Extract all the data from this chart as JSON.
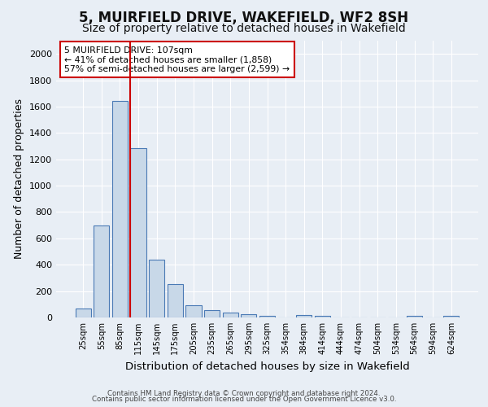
{
  "title": "5, MUIRFIELD DRIVE, WAKEFIELD, WF2 8SH",
  "subtitle": "Size of property relative to detached houses in Wakefield",
  "xlabel": "Distribution of detached houses by size in Wakefield",
  "ylabel": "Number of detached properties",
  "categories": [
    "25sqm",
    "55sqm",
    "85sqm",
    "115sqm",
    "145sqm",
    "175sqm",
    "205sqm",
    "235sqm",
    "265sqm",
    "295sqm",
    "325sqm",
    "354sqm",
    "384sqm",
    "414sqm",
    "444sqm",
    "474sqm",
    "504sqm",
    "534sqm",
    "564sqm",
    "594sqm",
    "624sqm"
  ],
  "values": [
    70,
    695,
    1640,
    1285,
    440,
    255,
    90,
    55,
    35,
    22,
    15,
    0,
    18,
    15,
    0,
    0,
    0,
    0,
    15,
    0,
    15
  ],
  "bar_color": "#c8d8e8",
  "bar_edge_color": "#4a7ab5",
  "vline_color": "#cc0000",
  "vline_x_index": 2.57,
  "annotation_text": "5 MUIRFIELD DRIVE: 107sqm\n← 41% of detached houses are smaller (1,858)\n57% of semi-detached houses are larger (2,599) →",
  "annotation_box_color": "#ffffff",
  "annotation_box_edge_color": "#cc0000",
  "ylim": [
    0,
    2100
  ],
  "yticks": [
    0,
    200,
    400,
    600,
    800,
    1000,
    1200,
    1400,
    1600,
    1800,
    2000
  ],
  "bg_color": "#e8eef5",
  "plot_bg_color": "#e8eef5",
  "footer_line1": "Contains HM Land Registry data © Crown copyright and database right 2024.",
  "footer_line2": "Contains public sector information licensed under the Open Government Licence v3.0.",
  "title_fontsize": 12,
  "subtitle_fontsize": 10,
  "xlabel_fontsize": 9.5,
  "ylabel_fontsize": 9
}
